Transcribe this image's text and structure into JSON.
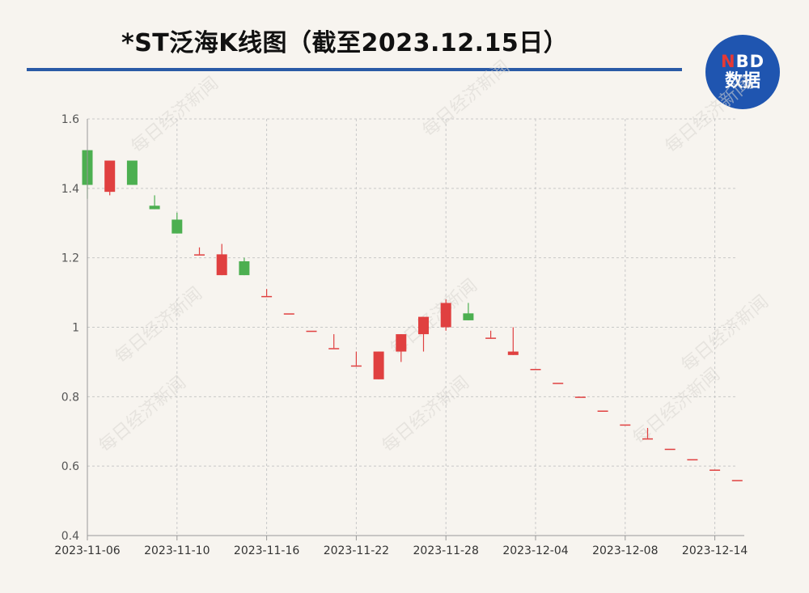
{
  "header": {
    "title": "*ST泛海K线图（截至2023.12.15日）"
  },
  "logo": {
    "line1_n": "N",
    "line1_rest": "BD",
    "line2": "数据"
  },
  "watermark": {
    "text": "每日经济新闻"
  },
  "colors": {
    "up": "#e04040",
    "down": "#4caf50",
    "grid": "#c8c8c8",
    "axis": "#999999",
    "accent": "#2a5aa6"
  },
  "chart_data": {
    "type": "candlestick",
    "title": "*ST泛海K线图（截至2023.12.15日）",
    "ylim": [
      0.4,
      1.6
    ],
    "yticks": [
      "0.4",
      "0.6",
      "0.8",
      "1",
      "1.2",
      "1.4",
      "1.6"
    ],
    "xtick_labels": [
      "2023-11-06",
      "2023-11-10",
      "2023-11-16",
      "2023-11-22",
      "2023-11-28",
      "2023-12-04",
      "2023-12-08",
      "2023-12-14"
    ],
    "grid": true,
    "legend": "none",
    "candles": [
      {
        "date": "2023-11-06",
        "open": 1.51,
        "close": 1.41,
        "high": 1.51,
        "low": 1.37
      },
      {
        "date": "2023-11-07",
        "open": 1.39,
        "close": 1.48,
        "high": 1.48,
        "low": 1.38
      },
      {
        "date": "2023-11-08",
        "open": 1.48,
        "close": 1.41,
        "high": 1.48,
        "low": 1.41
      },
      {
        "date": "2023-11-09",
        "open": 1.35,
        "close": 1.34,
        "high": 1.38,
        "low": 1.34
      },
      {
        "date": "2023-11-10",
        "open": 1.31,
        "close": 1.27,
        "high": 1.33,
        "low": 1.27
      },
      {
        "date": "2023-11-13",
        "open": 1.21,
        "close": 1.21,
        "high": 1.23,
        "low": 1.21
      },
      {
        "date": "2023-11-14",
        "open": 1.15,
        "close": 1.21,
        "high": 1.24,
        "low": 1.15
      },
      {
        "date": "2023-11-15",
        "open": 1.19,
        "close": 1.15,
        "high": 1.2,
        "low": 1.15
      },
      {
        "date": "2023-11-16",
        "open": 1.09,
        "close": 1.09,
        "high": 1.11,
        "low": 1.09
      },
      {
        "date": "2023-11-17",
        "open": 1.04,
        "close": 1.04,
        "high": 1.04,
        "low": 1.04
      },
      {
        "date": "2023-11-20",
        "open": 0.99,
        "close": 0.99,
        "high": 0.99,
        "low": 0.99
      },
      {
        "date": "2023-11-21",
        "open": 0.94,
        "close": 0.94,
        "high": 0.98,
        "low": 0.94
      },
      {
        "date": "2023-11-22",
        "open": 0.89,
        "close": 0.89,
        "high": 0.93,
        "low": 0.89
      },
      {
        "date": "2023-11-23",
        "open": 0.85,
        "close": 0.93,
        "high": 0.93,
        "low": 0.85
      },
      {
        "date": "2023-11-24",
        "open": 0.93,
        "close": 0.98,
        "high": 0.98,
        "low": 0.9
      },
      {
        "date": "2023-11-27",
        "open": 0.98,
        "close": 1.03,
        "high": 1.03,
        "low": 0.93
      },
      {
        "date": "2023-11-28",
        "open": 1.0,
        "close": 1.07,
        "high": 1.08,
        "low": 0.99
      },
      {
        "date": "2023-11-29",
        "open": 1.04,
        "close": 1.02,
        "high": 1.07,
        "low": 1.02
      },
      {
        "date": "2023-11-30",
        "open": 0.97,
        "close": 0.97,
        "high": 0.99,
        "low": 0.97
      },
      {
        "date": "2023-12-01",
        "open": 0.92,
        "close": 0.93,
        "high": 1.0,
        "low": 0.92
      },
      {
        "date": "2023-12-04",
        "open": 0.88,
        "close": 0.88,
        "high": 0.88,
        "low": 0.88
      },
      {
        "date": "2023-12-05",
        "open": 0.84,
        "close": 0.84,
        "high": 0.84,
        "low": 0.84
      },
      {
        "date": "2023-12-06",
        "open": 0.8,
        "close": 0.8,
        "high": 0.8,
        "low": 0.8
      },
      {
        "date": "2023-12-07",
        "open": 0.76,
        "close": 0.76,
        "high": 0.76,
        "low": 0.76
      },
      {
        "date": "2023-12-08",
        "open": 0.72,
        "close": 0.72,
        "high": 0.72,
        "low": 0.72
      },
      {
        "date": "2023-12-11",
        "open": 0.68,
        "close": 0.68,
        "high": 0.71,
        "low": 0.68
      },
      {
        "date": "2023-12-12",
        "open": 0.65,
        "close": 0.65,
        "high": 0.65,
        "low": 0.65
      },
      {
        "date": "2023-12-13",
        "open": 0.62,
        "close": 0.62,
        "high": 0.62,
        "low": 0.62
      },
      {
        "date": "2023-12-14",
        "open": 0.59,
        "close": 0.59,
        "high": 0.59,
        "low": 0.59
      },
      {
        "date": "2023-12-15",
        "open": 0.56,
        "close": 0.56,
        "high": 0.56,
        "low": 0.56
      }
    ]
  }
}
